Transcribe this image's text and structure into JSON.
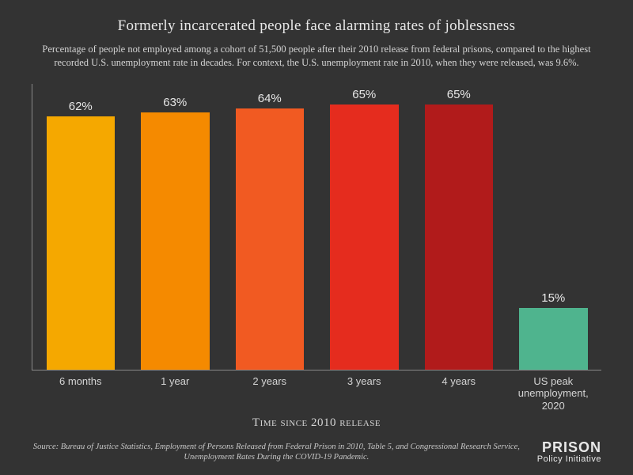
{
  "title": "Formerly incarcerated people face alarming rates of joblessness",
  "title_fontsize": 19,
  "title_color": "#e8e8e8",
  "subtitle": "Percentage of people not employed among a cohort of 51,500 people after their 2010 release from federal prisons, compared to the highest recorded U.S. unemployment rate in decades. For context, the U.S. unemployment rate in 2010, when they were released, was 9.6%.",
  "subtitle_fontsize": 12.5,
  "subtitle_color": "#d4d4d4",
  "background_color": "#333333",
  "chart": {
    "type": "bar",
    "ylim": [
      0,
      70
    ],
    "bar_width_ratio": 0.82,
    "value_fontsize": 15,
    "value_color": "#e8e8e8",
    "label_fontsize": 13,
    "label_color": "#d4d4d4",
    "axis_color": "#888888",
    "categories": [
      "6 months",
      "1 year",
      "2 years",
      "3 years",
      "4 years",
      "US peak unemployment, 2020"
    ],
    "values": [
      62,
      63,
      64,
      65,
      65,
      15
    ],
    "value_labels": [
      "62%",
      "63%",
      "64%",
      "65%",
      "65%",
      "15%"
    ],
    "bar_colors": [
      "#f5a800",
      "#f58a00",
      "#f15a22",
      "#e52c1e",
      "#b11b1b",
      "#4fb48e"
    ],
    "xaxis_title": "Time since 2010 release",
    "xaxis_title_fontsize": 15,
    "xaxis_title_color": "#d4d4d4"
  },
  "source": "Source: Bureau of Justice Statistics, Employment of Persons Released from Federal Prison in 2010, Table 5, and Congressional Research Service, Unemployment Rates During the COVID-19 Pandemic.",
  "source_fontsize": 10.5,
  "source_color": "#c8c8c8",
  "logo": {
    "top": "PRISON",
    "bottom": "Policy Initiative",
    "top_fontsize": 18,
    "bottom_fontsize": 11,
    "color": "#e8e8e8"
  }
}
